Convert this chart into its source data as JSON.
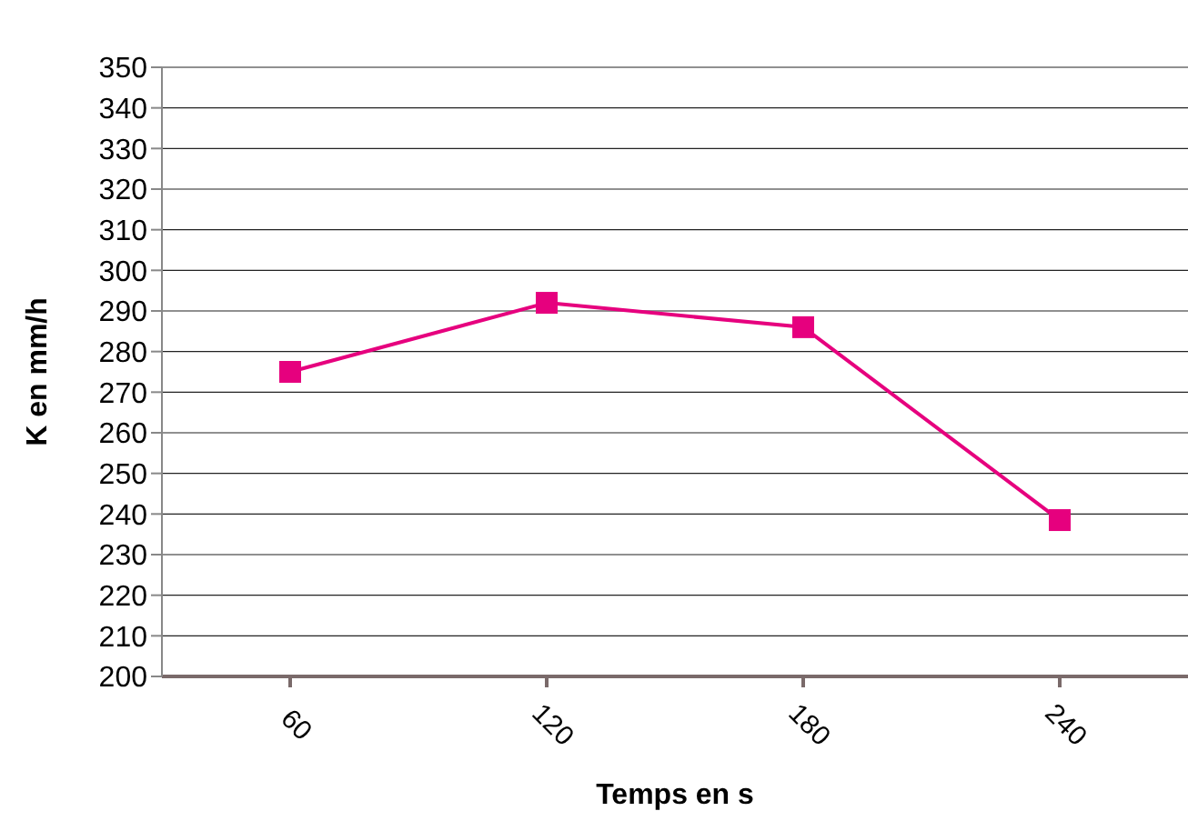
{
  "chart_data": {
    "type": "line",
    "xlabel": "Temps en s",
    "ylabel": "K en mm/h",
    "categories": [
      "60",
      "120",
      "180",
      "240"
    ],
    "series": [
      {
        "color": "#e6007e",
        "values": [
          275,
          292,
          286,
          238.5
        ]
      }
    ],
    "ylim": [
      200,
      350
    ],
    "yticks": [
      200,
      210,
      220,
      230,
      240,
      250,
      260,
      270,
      280,
      290,
      300,
      310,
      320,
      330,
      340,
      350
    ],
    "grid": "y",
    "marker": "square",
    "line_style": "solid"
  }
}
